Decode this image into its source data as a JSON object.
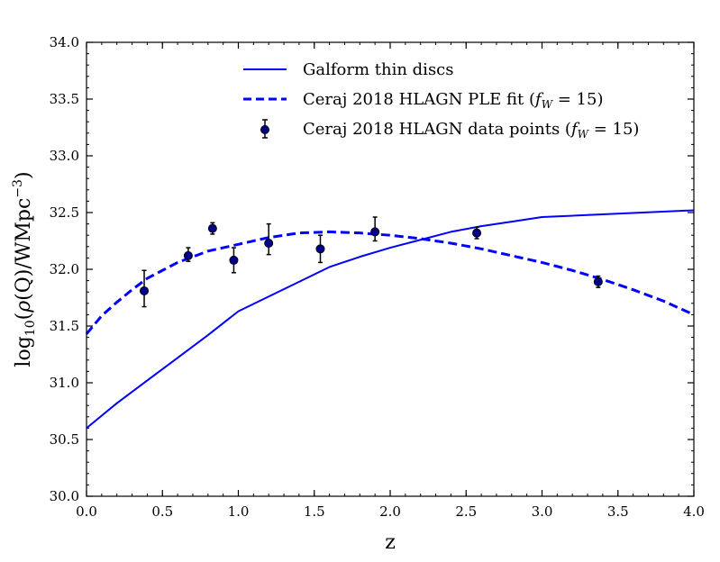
{
  "chart_data": {
    "type": "line",
    "title": "",
    "xlabel": "z",
    "ylabel": "log10(ρ(Q)/WMpc−3)",
    "xlim": [
      0.0,
      4.0
    ],
    "ylim": [
      30.0,
      34.0
    ],
    "x_ticks": [
      0.0,
      0.5,
      1.0,
      1.5,
      2.0,
      2.5,
      3.0,
      3.5,
      4.0
    ],
    "x_tick_labels": [
      "0.0",
      "0.5",
      "1.0",
      "1.5",
      "2.0",
      "2.5",
      "3.0",
      "3.5",
      "4.0"
    ],
    "y_ticks": [
      30.0,
      30.5,
      31.0,
      31.5,
      32.0,
      32.5,
      33.0,
      33.5,
      34.0
    ],
    "y_tick_labels": [
      "30.0",
      "30.5",
      "31.0",
      "31.5",
      "32.0",
      "32.5",
      "33.0",
      "33.5",
      "34.0"
    ],
    "grid": false,
    "legend_position": "top-center",
    "series": [
      {
        "name": "Galform thin discs",
        "style": "solid",
        "color": "#0000ff",
        "x": [
          0.0,
          0.2,
          0.4,
          0.6,
          0.8,
          1.0,
          1.2,
          1.4,
          1.6,
          1.8,
          2.0,
          2.2,
          2.4,
          2.6,
          2.8,
          3.0,
          4.0
        ],
        "y": [
          30.6,
          30.82,
          31.02,
          31.22,
          31.42,
          31.63,
          31.76,
          31.89,
          32.02,
          32.11,
          32.19,
          32.26,
          32.33,
          32.38,
          32.42,
          32.46,
          32.52
        ]
      },
      {
        "name": "Ceraj 2018 HLAGN PLE fit",
        "legend_prefix": "Ceraj 2018 HLAGN PLE fit (",
        "style": "dashed",
        "color": "#0000ff",
        "x": [
          0.0,
          0.1,
          0.2,
          0.3,
          0.4,
          0.5,
          0.6,
          0.7,
          0.8,
          0.9,
          1.0,
          1.2,
          1.4,
          1.6,
          1.8,
          2.0,
          2.2,
          2.4,
          2.6,
          2.8,
          3.0,
          3.2,
          3.4,
          3.6,
          3.8,
          4.0
        ],
        "y": [
          31.43,
          31.59,
          31.71,
          31.82,
          31.92,
          31.99,
          32.06,
          32.11,
          32.16,
          32.19,
          32.22,
          32.28,
          32.32,
          32.33,
          32.32,
          32.3,
          32.27,
          32.23,
          32.18,
          32.12,
          32.06,
          31.99,
          31.91,
          31.82,
          31.72,
          31.6
        ]
      },
      {
        "name": "Ceraj 2018 HLAGN data points",
        "legend_prefix": "Ceraj 2018 HLAGN data points (",
        "style": "points",
        "color": "#00008b",
        "points": [
          {
            "x": 0.38,
            "y": 31.81,
            "err_low": 0.14,
            "err_high": 0.18
          },
          {
            "x": 0.67,
            "y": 32.12,
            "err_low": 0.05,
            "err_high": 0.07
          },
          {
            "x": 0.83,
            "y": 32.36,
            "err_low": 0.05,
            "err_high": 0.05
          },
          {
            "x": 0.97,
            "y": 32.08,
            "err_low": 0.11,
            "err_high": 0.11
          },
          {
            "x": 1.2,
            "y": 32.23,
            "err_low": 0.1,
            "err_high": 0.17
          },
          {
            "x": 1.54,
            "y": 32.18,
            "err_low": 0.12,
            "err_high": 0.12
          },
          {
            "x": 1.9,
            "y": 32.33,
            "err_low": 0.08,
            "err_high": 0.13
          },
          {
            "x": 2.57,
            "y": 32.32,
            "err_low": 0.05,
            "err_high": 0.05
          },
          {
            "x": 3.37,
            "y": 31.89,
            "err_low": 0.05,
            "err_high": 0.05
          }
        ]
      }
    ],
    "legend_math": {
      "open": "(",
      "f": "f",
      "sub": "W",
      "eq": " = 15)"
    },
    "ylabel_parts": {
      "log": "log",
      "sub": "10",
      "open": "(",
      "rho": "ρ",
      "q": "(Q)/WMpc",
      "sup": "−3",
      "close": ")"
    }
  }
}
